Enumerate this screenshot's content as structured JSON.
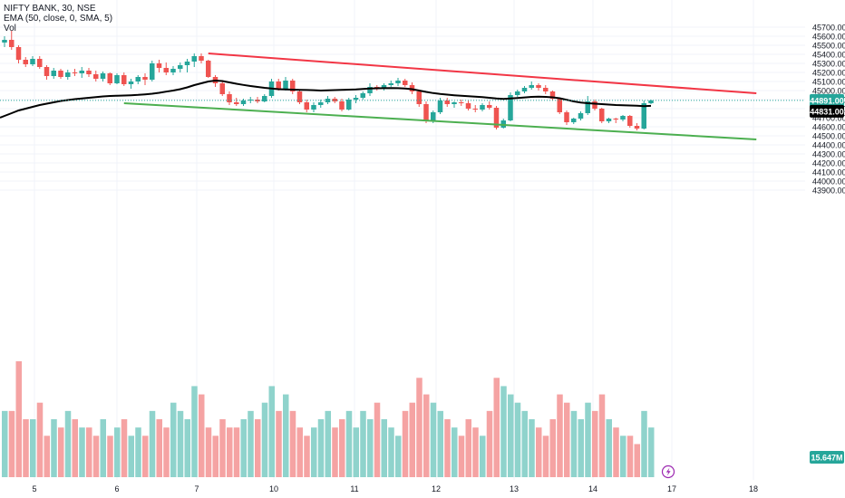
{
  "legend": {
    "symbol": "NIFTY BANK, 30, NSE",
    "ema": "EMA (50, close, 0, SMA, 5)",
    "vol": "Vol"
  },
  "colors": {
    "up": "#26a69a",
    "down": "#ef5350",
    "vol_up": "#8fd3cc",
    "vol_down": "#f5a3a3",
    "ema": "#000000",
    "upper_channel": "#f23645",
    "lower_channel": "#4caf50",
    "grid": "#f0f3fa",
    "axis_text": "#131722"
  },
  "badges": {
    "last_price": {
      "text": "44891.00",
      "value": 44891,
      "color": "#26a69a"
    },
    "ema_value": {
      "text": "44831.00",
      "value": 44831,
      "color": "#000000"
    },
    "volume": {
      "text": "15.647M",
      "color": "#26a69a"
    }
  },
  "chart_data": {
    "type": "candlestick",
    "y_ticks": [
      45700,
      45600,
      45500,
      45400,
      45300,
      45200,
      45100,
      45000,
      44900,
      44800,
      44700,
      44600,
      44500,
      44400,
      44300,
      44200,
      44100,
      44000,
      43900
    ],
    "y_tick_format": "0.00",
    "x_ticks": [
      "5",
      "6",
      "7",
      "10",
      "11",
      "12",
      "13",
      "14",
      "17",
      "18"
    ],
    "candles": [
      [
        45530,
        45600,
        45480,
        45560
      ],
      [
        45560,
        45660,
        45450,
        45480
      ],
      [
        45480,
        45500,
        45300,
        45340
      ],
      [
        45340,
        45370,
        45260,
        45290
      ],
      [
        45290,
        45380,
        45270,
        45350
      ],
      [
        45350,
        45380,
        45240,
        45260
      ],
      [
        45260,
        45280,
        45120,
        45160
      ],
      [
        45160,
        45250,
        45130,
        45220
      ],
      [
        45220,
        45240,
        45130,
        45150
      ],
      [
        45150,
        45230,
        45120,
        45200
      ],
      [
        45200,
        45240,
        45160,
        45190
      ],
      [
        45190,
        45260,
        45140,
        45220
      ],
      [
        45220,
        45250,
        45150,
        45180
      ],
      [
        45180,
        45220,
        45100,
        45130
      ],
      [
        45130,
        45210,
        45100,
        45190
      ],
      [
        45190,
        45200,
        45060,
        45080
      ],
      [
        45080,
        45190,
        45070,
        45170
      ],
      [
        45170,
        45200,
        45050,
        45070
      ],
      [
        45070,
        45130,
        45020,
        45100
      ],
      [
        45100,
        45170,
        45070,
        45150
      ],
      [
        45150,
        45190,
        45060,
        45120
      ],
      [
        45120,
        45330,
        45100,
        45300
      ],
      [
        45300,
        45340,
        45200,
        45250
      ],
      [
        45250,
        45310,
        45170,
        45200
      ],
      [
        45200,
        45270,
        45170,
        45240
      ],
      [
        45240,
        45310,
        45200,
        45280
      ],
      [
        45280,
        45350,
        45200,
        45320
      ],
      [
        45320,
        45410,
        45260,
        45380
      ],
      [
        45380,
        45410,
        45300,
        45330
      ],
      [
        45330,
        45340,
        45140,
        45150
      ],
      [
        45150,
        45170,
        45040,
        45080
      ],
      [
        45080,
        45100,
        44940,
        44960
      ],
      [
        44960,
        44990,
        44840,
        44870
      ],
      [
        44870,
        44920,
        44830,
        44850
      ],
      [
        44850,
        44910,
        44830,
        44890
      ],
      [
        44890,
        44930,
        44860,
        44900
      ],
      [
        44900,
        44930,
        44860,
        44880
      ],
      [
        44880,
        44960,
        44870,
        44940
      ],
      [
        44940,
        45130,
        44920,
        45100
      ],
      [
        45100,
        45130,
        45000,
        45020
      ],
      [
        45020,
        45150,
        45000,
        45110
      ],
      [
        45110,
        45130,
        44960,
        44990
      ],
      [
        44990,
        45010,
        44850,
        44870
      ],
      [
        44870,
        44900,
        44760,
        44790
      ],
      [
        44790,
        44870,
        44760,
        44840
      ],
      [
        44840,
        44900,
        44810,
        44870
      ],
      [
        44870,
        44940,
        44850,
        44910
      ],
      [
        44910,
        44930,
        44860,
        44880
      ],
      [
        44880,
        44910,
        44770,
        44790
      ],
      [
        44790,
        44920,
        44780,
        44900
      ],
      [
        44900,
        44950,
        44860,
        44920
      ],
      [
        44920,
        44990,
        44900,
        44970
      ],
      [
        44970,
        45080,
        44940,
        45040
      ],
      [
        45040,
        45060,
        45000,
        45020
      ],
      [
        45020,
        45080,
        45000,
        45060
      ],
      [
        45060,
        45110,
        45040,
        45080
      ],
      [
        45080,
        45140,
        45050,
        45110
      ],
      [
        45110,
        45130,
        45040,
        45060
      ],
      [
        45060,
        45090,
        44960,
        44990
      ],
      [
        44990,
        45010,
        44820,
        44850
      ],
      [
        44850,
        44880,
        44640,
        44660
      ],
      [
        44660,
        44780,
        44640,
        44760
      ],
      [
        44760,
        44920,
        44740,
        44890
      ],
      [
        44890,
        44920,
        44820,
        44850
      ],
      [
        44850,
        44880,
        44810,
        44870
      ],
      [
        44870,
        44900,
        44830,
        44860
      ],
      [
        44860,
        44890,
        44780,
        44800
      ],
      [
        44800,
        44840,
        44760,
        44790
      ],
      [
        44790,
        44860,
        44770,
        44840
      ],
      [
        44840,
        44880,
        44790,
        44810
      ],
      [
        44810,
        44830,
        44570,
        44590
      ],
      [
        44590,
        44690,
        44580,
        44670
      ],
      [
        44670,
        44980,
        44660,
        44950
      ],
      [
        44950,
        45010,
        44930,
        44990
      ],
      [
        44990,
        45050,
        44970,
        45030
      ],
      [
        45030,
        45100,
        45010,
        45060
      ],
      [
        45060,
        45080,
        45000,
        45030
      ],
      [
        45030,
        45060,
        44960,
        44990
      ],
      [
        44990,
        45000,
        44890,
        44910
      ],
      [
        44910,
        44920,
        44740,
        44760
      ],
      [
        44760,
        44780,
        44620,
        44650
      ],
      [
        44650,
        44700,
        44630,
        44690
      ],
      [
        44690,
        44770,
        44670,
        44750
      ],
      [
        44750,
        44940,
        44730,
        44880
      ],
      [
        44880,
        44900,
        44780,
        44800
      ],
      [
        44800,
        44810,
        44640,
        44660
      ],
      [
        44660,
        44700,
        44640,
        44690
      ],
      [
        44690,
        44700,
        44640,
        44680
      ],
      [
        44680,
        44730,
        44660,
        44720
      ],
      [
        44720,
        44730,
        44590,
        44610
      ],
      [
        44610,
        44640,
        44560,
        44580
      ],
      [
        44580,
        44890,
        44570,
        44860
      ],
      [
        44860,
        44900,
        44850,
        44891
      ]
    ],
    "ema": [
      44720,
      44750,
      44780,
      44800,
      44820,
      44840,
      44855,
      44870,
      44885,
      44895,
      44905,
      44912,
      44920,
      44928,
      44935,
      44940,
      44943,
      44945,
      44948,
      44952,
      44958,
      44965,
      44975,
      44988,
      45000,
      45015,
      45035,
      45060,
      45080,
      45100,
      45110,
      45105,
      45090,
      45075,
      45062,
      45050,
      45040,
      45030,
      45022,
      45015,
      45012,
      45010,
      45008,
      45006,
      45004,
      45000,
      45002,
      45005,
      45008,
      45010,
      45013,
      45018,
      45022,
      45025,
      45026,
      45027,
      45026,
      45023,
      45015,
      45000,
      44985,
      44972,
      44962,
      44955,
      44948,
      44942,
      44937,
      44932,
      44927,
      44920,
      44912,
      44908,
      44912,
      44918,
      44924,
      44930,
      44932,
      44930,
      44925,
      44915,
      44898,
      44880,
      44868,
      44860,
      44855,
      44850,
      44845,
      44840,
      44838,
      44835,
      44832,
      44828,
      44831
    ],
    "volume": [
      8,
      8,
      14,
      7,
      7,
      9,
      5,
      7,
      6,
      8,
      7,
      6,
      6,
      5,
      7,
      5,
      6,
      7,
      5,
      6,
      5,
      8,
      7,
      6,
      9,
      8,
      7,
      11,
      10,
      6,
      5,
      7,
      6,
      6,
      7,
      8,
      7,
      9,
      11,
      8,
      10,
      8,
      6,
      5,
      6,
      7,
      8,
      6,
      7,
      8,
      6,
      8,
      7,
      9,
      7,
      6,
      5,
      8,
      9,
      12,
      10,
      9,
      8,
      7,
      6,
      5,
      7,
      6,
      5,
      8,
      12,
      11,
      10,
      9,
      8,
      7,
      6,
      5,
      7,
      10,
      9,
      8,
      7,
      9,
      8,
      10,
      7,
      6,
      5,
      5,
      4,
      8,
      6
    ],
    "volume_scale_max": 14,
    "upper_channel": {
      "start_index": 29,
      "start_value": 45410,
      "end_index": 107,
      "end_value": 44970
    },
    "lower_channel": {
      "start_index": 17,
      "start_value": 44860,
      "end_index": 107,
      "end_value": 44460
    }
  }
}
